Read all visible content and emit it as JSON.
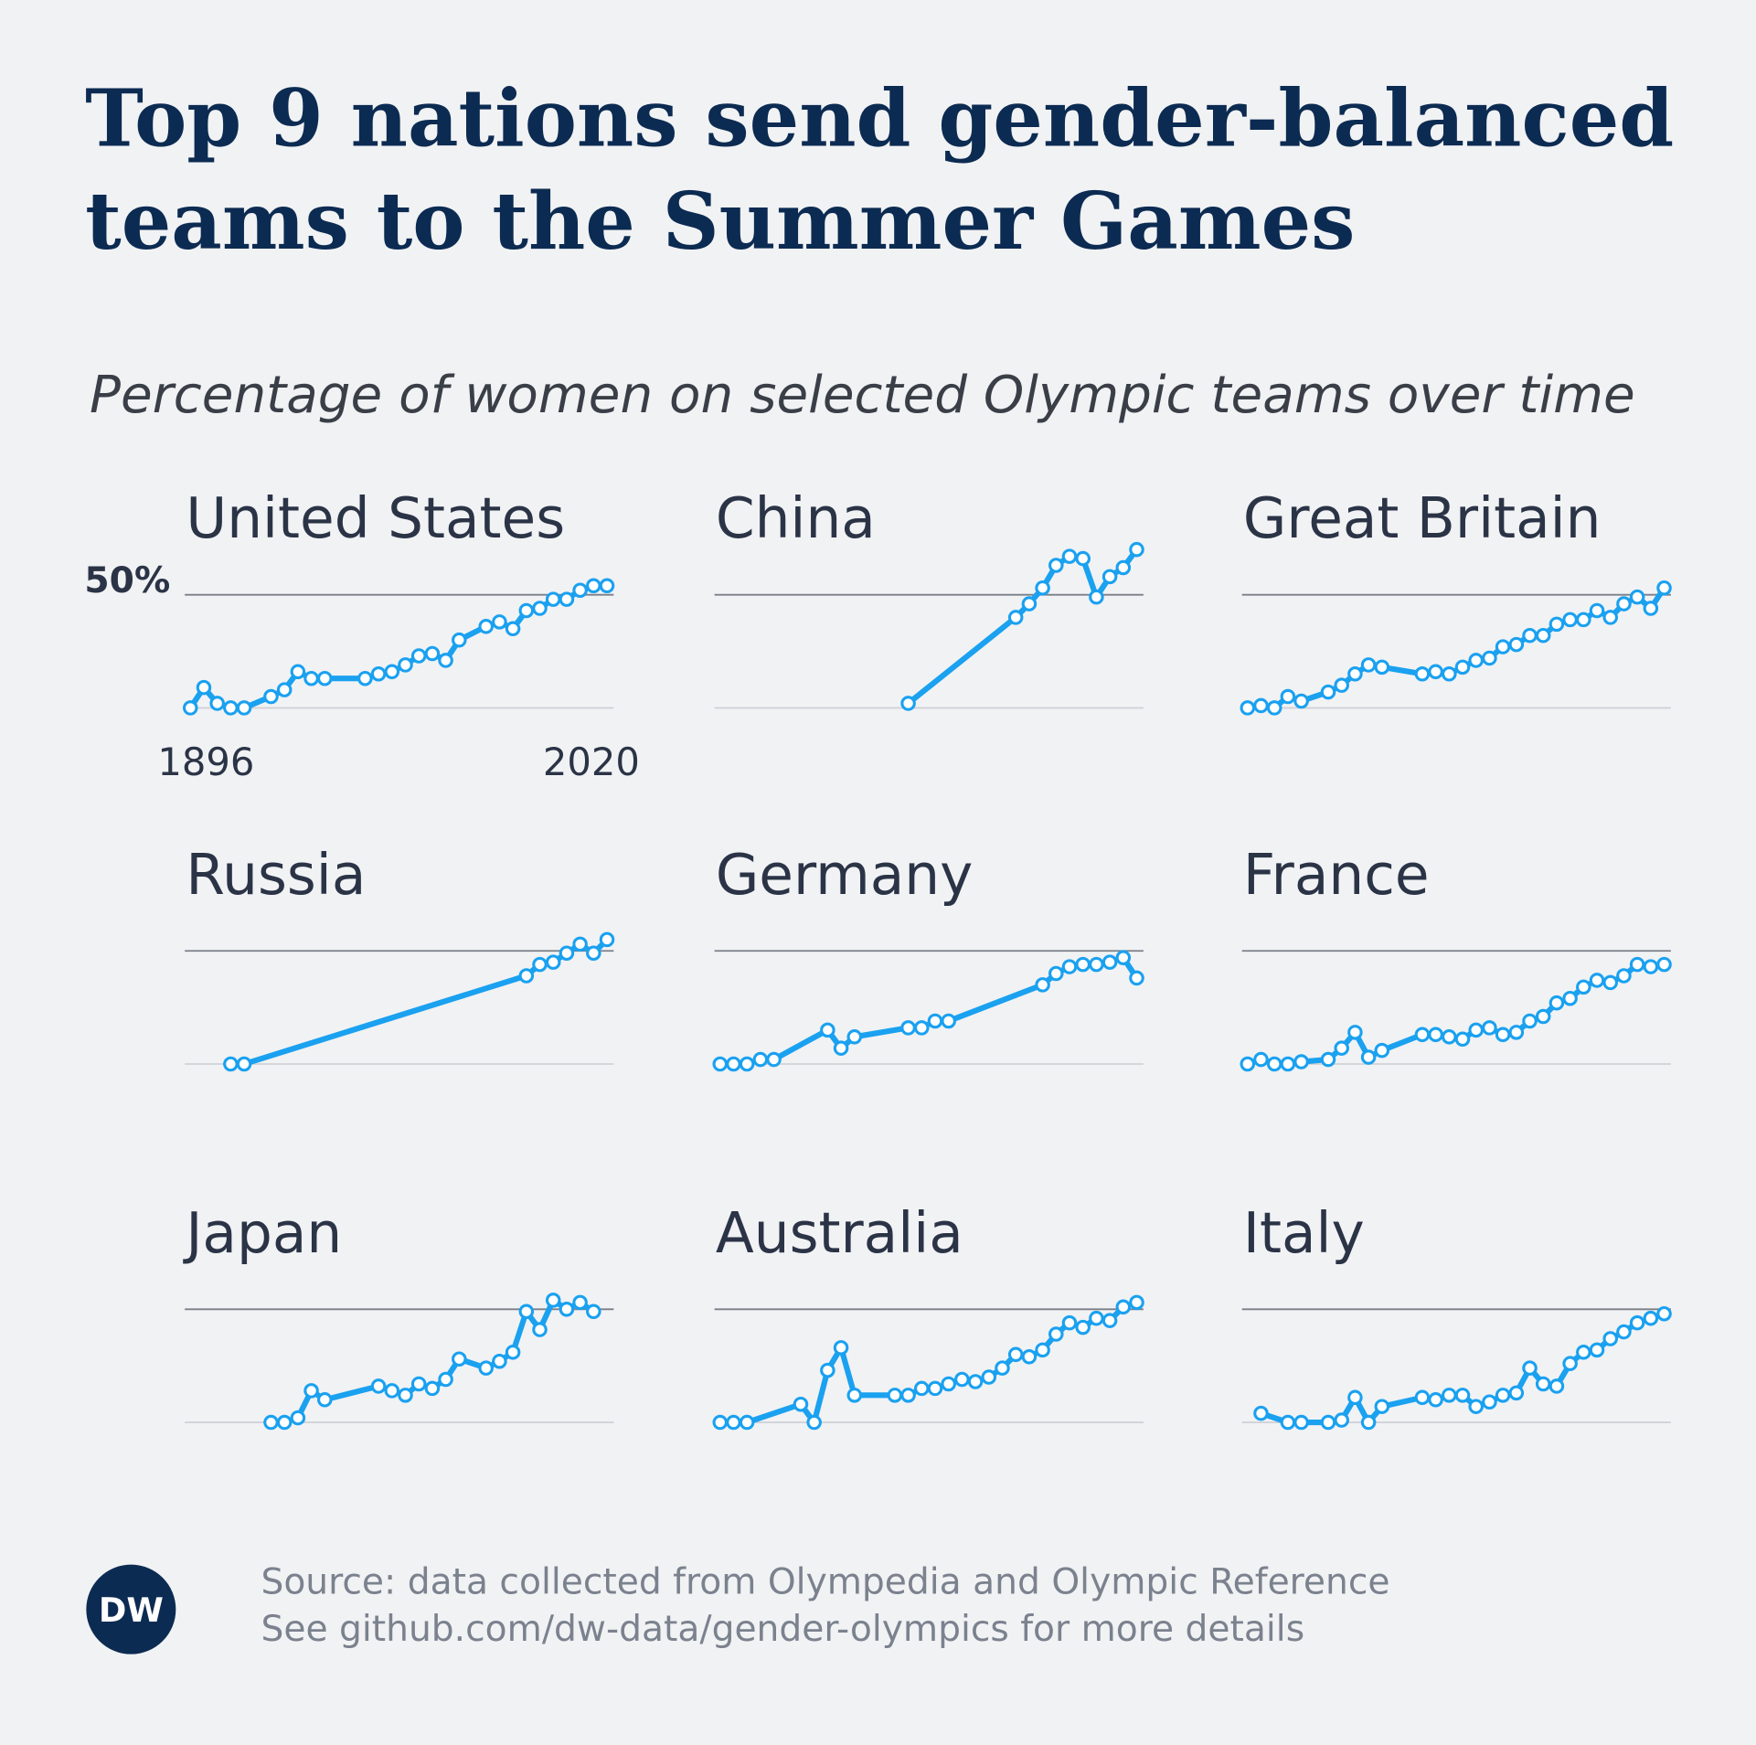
{
  "title": [
    "Top 9 nations send gender-balanced",
    "teams to the Summer Games"
  ],
  "subtitle": "Percentage of women on selected Olympic teams over time",
  "source": [
    "Source: data collected from Olympedia and Olympic Reference",
    "See github.com/dw-data/gender-olympics for more details"
  ],
  "logo": "DW",
  "chart_data": [
    {
      "type": "line",
      "title": "United States",
      "color": "#1aa1f0",
      "xlim": [
        1896,
        2020
      ],
      "ylim": [
        0,
        75
      ],
      "grid": [
        0,
        50
      ],
      "yticks": [
        {
          "value": 50,
          "label": "50%"
        }
      ],
      "xticks": [
        1896,
        2020
      ],
      "x": [
        1896,
        1900,
        1904,
        1908,
        1912,
        1920,
        1924,
        1928,
        1932,
        1936,
        1948,
        1952,
        1956,
        1960,
        1964,
        1968,
        1972,
        1976,
        1984,
        1988,
        1992,
        1996,
        2000,
        2004,
        2008,
        2012,
        2016,
        2020
      ],
      "values": [
        0,
        9,
        2,
        0,
        0,
        5,
        8,
        16,
        13,
        13,
        13,
        15,
        16,
        19,
        23,
        24,
        21,
        30,
        36,
        38,
        35,
        43,
        44,
        48,
        48,
        52,
        54,
        54
      ]
    },
    {
      "type": "line",
      "title": "China",
      "color": "#1aa1f0",
      "xlim": [
        1896,
        2020
      ],
      "ylim": [
        0,
        75
      ],
      "grid": [
        0,
        50
      ],
      "x": [
        1952,
        1984,
        1988,
        1992,
        1996,
        2000,
        2004,
        2008,
        2012,
        2016,
        2020
      ],
      "values": [
        2,
        40,
        46,
        53,
        63,
        67,
        66,
        49,
        58,
        62,
        70
      ]
    },
    {
      "type": "line",
      "title": "Great Britain",
      "color": "#1aa1f0",
      "xlim": [
        1896,
        2020
      ],
      "ylim": [
        0,
        75
      ],
      "grid": [
        0,
        50
      ],
      "x": [
        1896,
        1900,
        1904,
        1908,
        1912,
        1920,
        1924,
        1928,
        1932,
        1936,
        1948,
        1952,
        1956,
        1960,
        1964,
        1968,
        1972,
        1976,
        1980,
        1984,
        1988,
        1992,
        1996,
        2000,
        2004,
        2008,
        2012,
        2016,
        2020
      ],
      "values": [
        0,
        1,
        0,
        5,
        3,
        7,
        10,
        15,
        19,
        18,
        15,
        16,
        15,
        18,
        21,
        22,
        27,
        28,
        32,
        32,
        37,
        39,
        39,
        43,
        40,
        46,
        49,
        44,
        53
      ]
    },
    {
      "type": "line",
      "title": "Russia",
      "color": "#1aa1f0",
      "xlim": [
        1896,
        2020
      ],
      "ylim": [
        0,
        75
      ],
      "grid": [
        0,
        50
      ],
      "x": [
        1908,
        1912,
        1996,
        2000,
        2004,
        2008,
        2012,
        2016,
        2020
      ],
      "values": [
        0,
        0,
        39,
        44,
        45,
        49,
        53,
        49,
        55
      ]
    },
    {
      "type": "line",
      "title": "Germany",
      "color": "#1aa1f0",
      "xlim": [
        1896,
        2020
      ],
      "ylim": [
        0,
        75
      ],
      "grid": [
        0,
        50
      ],
      "x": [
        1896,
        1900,
        1904,
        1908,
        1912,
        1928,
        1932,
        1936,
        1952,
        1956,
        1960,
        1964,
        1992,
        1996,
        2000,
        2004,
        2008,
        2012,
        2016,
        2020
      ],
      "values": [
        0,
        0,
        0,
        2,
        2,
        15,
        7,
        12,
        16,
        16,
        19,
        19,
        35,
        40,
        43,
        44,
        44,
        45,
        47,
        38
      ]
    },
    {
      "type": "line",
      "title": "France",
      "color": "#1aa1f0",
      "xlim": [
        1896,
        2020
      ],
      "ylim": [
        0,
        75
      ],
      "grid": [
        0,
        50
      ],
      "x": [
        1896,
        1900,
        1904,
        1908,
        1912,
        1920,
        1924,
        1928,
        1932,
        1936,
        1948,
        1952,
        1956,
        1960,
        1964,
        1968,
        1972,
        1976,
        1980,
        1984,
        1988,
        1992,
        1996,
        2000,
        2004,
        2008,
        2012,
        2016,
        2020
      ],
      "values": [
        0,
        2,
        0,
        0,
        1,
        2,
        7,
        14,
        3,
        6,
        13,
        13,
        12,
        11,
        15,
        16,
        13,
        14,
        19,
        21,
        27,
        29,
        34,
        37,
        36,
        39,
        44,
        43,
        44
      ]
    },
    {
      "type": "line",
      "title": "Japan",
      "color": "#1aa1f0",
      "xlim": [
        1896,
        2020
      ],
      "ylim": [
        0,
        75
      ],
      "grid": [
        0,
        50
      ],
      "x": [
        1920,
        1924,
        1928,
        1932,
        1936,
        1952,
        1956,
        1960,
        1964,
        1968,
        1972,
        1976,
        1984,
        1988,
        1992,
        1996,
        2000,
        2004,
        2008,
        2012,
        2016
      ],
      "values": [
        0,
        0,
        2,
        14,
        10,
        16,
        14,
        12,
        17,
        15,
        19,
        28,
        24,
        27,
        31,
        49,
        41,
        54,
        50,
        53,
        49
      ]
    },
    {
      "type": "line",
      "title": "Australia",
      "color": "#1aa1f0",
      "xlim": [
        1896,
        2020
      ],
      "ylim": [
        0,
        75
      ],
      "grid": [
        0,
        50
      ],
      "x": [
        1896,
        1900,
        1904,
        1920,
        1924,
        1928,
        1932,
        1936,
        1948,
        1952,
        1956,
        1960,
        1964,
        1968,
        1972,
        1976,
        1980,
        1984,
        1988,
        1992,
        1996,
        2000,
        2004,
        2008,
        2012,
        2016,
        2020
      ],
      "values": [
        0,
        0,
        0,
        8,
        0,
        23,
        33,
        12,
        12,
        12,
        15,
        15,
        17,
        19,
        18,
        20,
        24,
        30,
        29,
        32,
        39,
        44,
        42,
        46,
        45,
        51,
        53
      ]
    },
    {
      "type": "line",
      "title": "Italy",
      "color": "#1aa1f0",
      "xlim": [
        1896,
        2020
      ],
      "ylim": [
        0,
        75
      ],
      "grid": [
        0,
        50
      ],
      "x": [
        1900,
        1908,
        1912,
        1920,
        1924,
        1928,
        1932,
        1936,
        1948,
        1952,
        1956,
        1960,
        1964,
        1968,
        1972,
        1976,
        1980,
        1984,
        1988,
        1992,
        1996,
        2000,
        2004,
        2008,
        2012,
        2016,
        2020
      ],
      "values": [
        4,
        0,
        0,
        0,
        1,
        11,
        0,
        7,
        11,
        10,
        12,
        12,
        7,
        9,
        12,
        13,
        24,
        17,
        16,
        26,
        31,
        32,
        37,
        40,
        44,
        46,
        48
      ]
    }
  ]
}
